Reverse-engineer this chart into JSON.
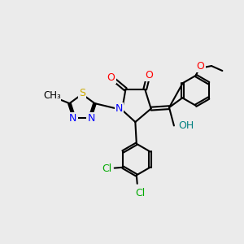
{
  "bg_color": "#ebebeb",
  "atom_colors": {
    "O": "#ff0000",
    "N": "#0000ff",
    "S": "#ccaa00",
    "Cl": "#00aa00",
    "H_OH": "#008080",
    "C": "#000000"
  },
  "bond_color": "#000000",
  "bond_lw": 1.5,
  "font_size_atom": 9,
  "font_size_small": 8.5
}
